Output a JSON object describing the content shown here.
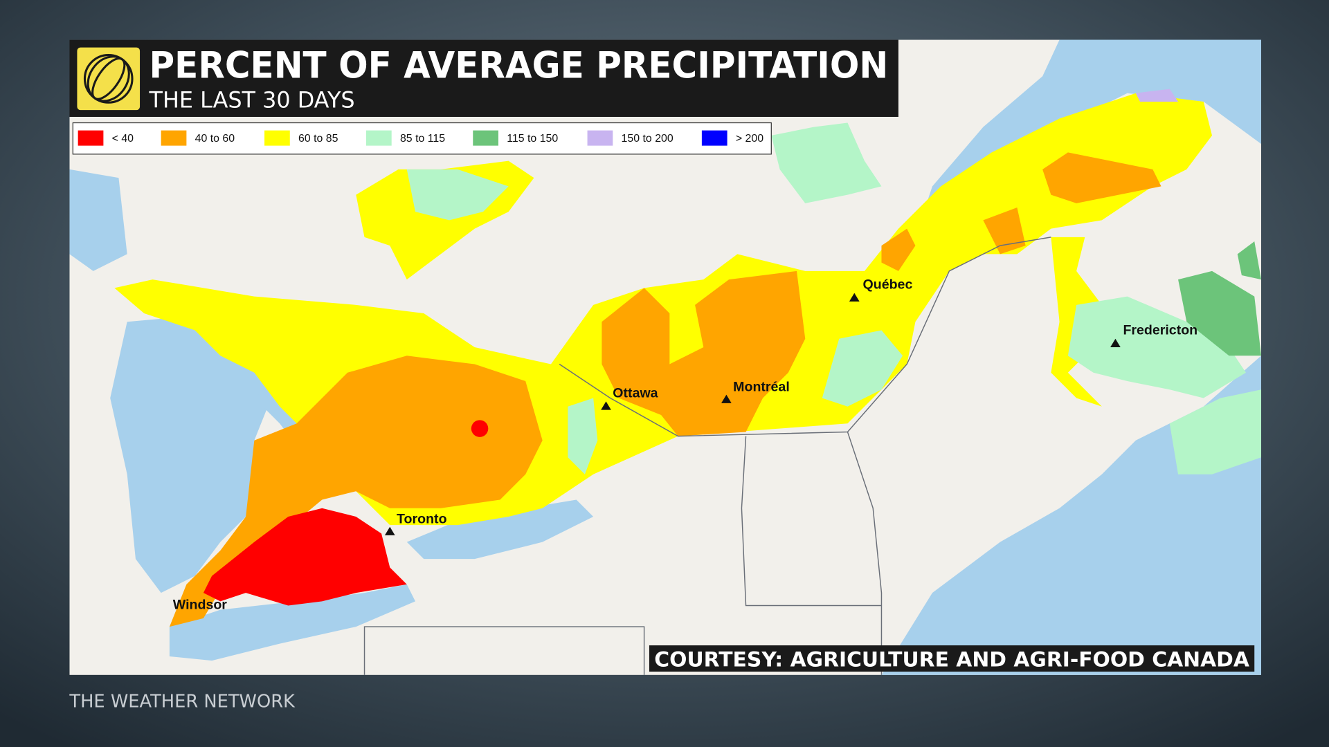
{
  "header": {
    "title": "PERCENT OF AVERAGE PRECIPITATION",
    "subtitle": "THE LAST 30 DAYS"
  },
  "legend": {
    "items": [
      {
        "label": "< 40",
        "color": "#ff0000"
      },
      {
        "label": "40 to 60",
        "color": "#ffa500"
      },
      {
        "label": "60 to 85",
        "color": "#ffff00"
      },
      {
        "label": "85 to 115",
        "color": "#b4f5c8"
      },
      {
        "label": "115 to 150",
        "color": "#6cc47a"
      },
      {
        "label": "150 to 200",
        "color": "#c8b4f0"
      },
      {
        "label": "> 200",
        "color": "#0000ff"
      }
    ]
  },
  "cities": [
    {
      "name": "Québec"
    },
    {
      "name": "Ottawa"
    },
    {
      "name": "Montréal"
    },
    {
      "name": "Toronto"
    },
    {
      "name": "Windsor"
    },
    {
      "name": "Fredericton"
    }
  ],
  "credit": "COURTESY: AGRICULTURE AND AGRI-FOOD CANADA",
  "brand": "THE WEATHER NETWORK"
}
